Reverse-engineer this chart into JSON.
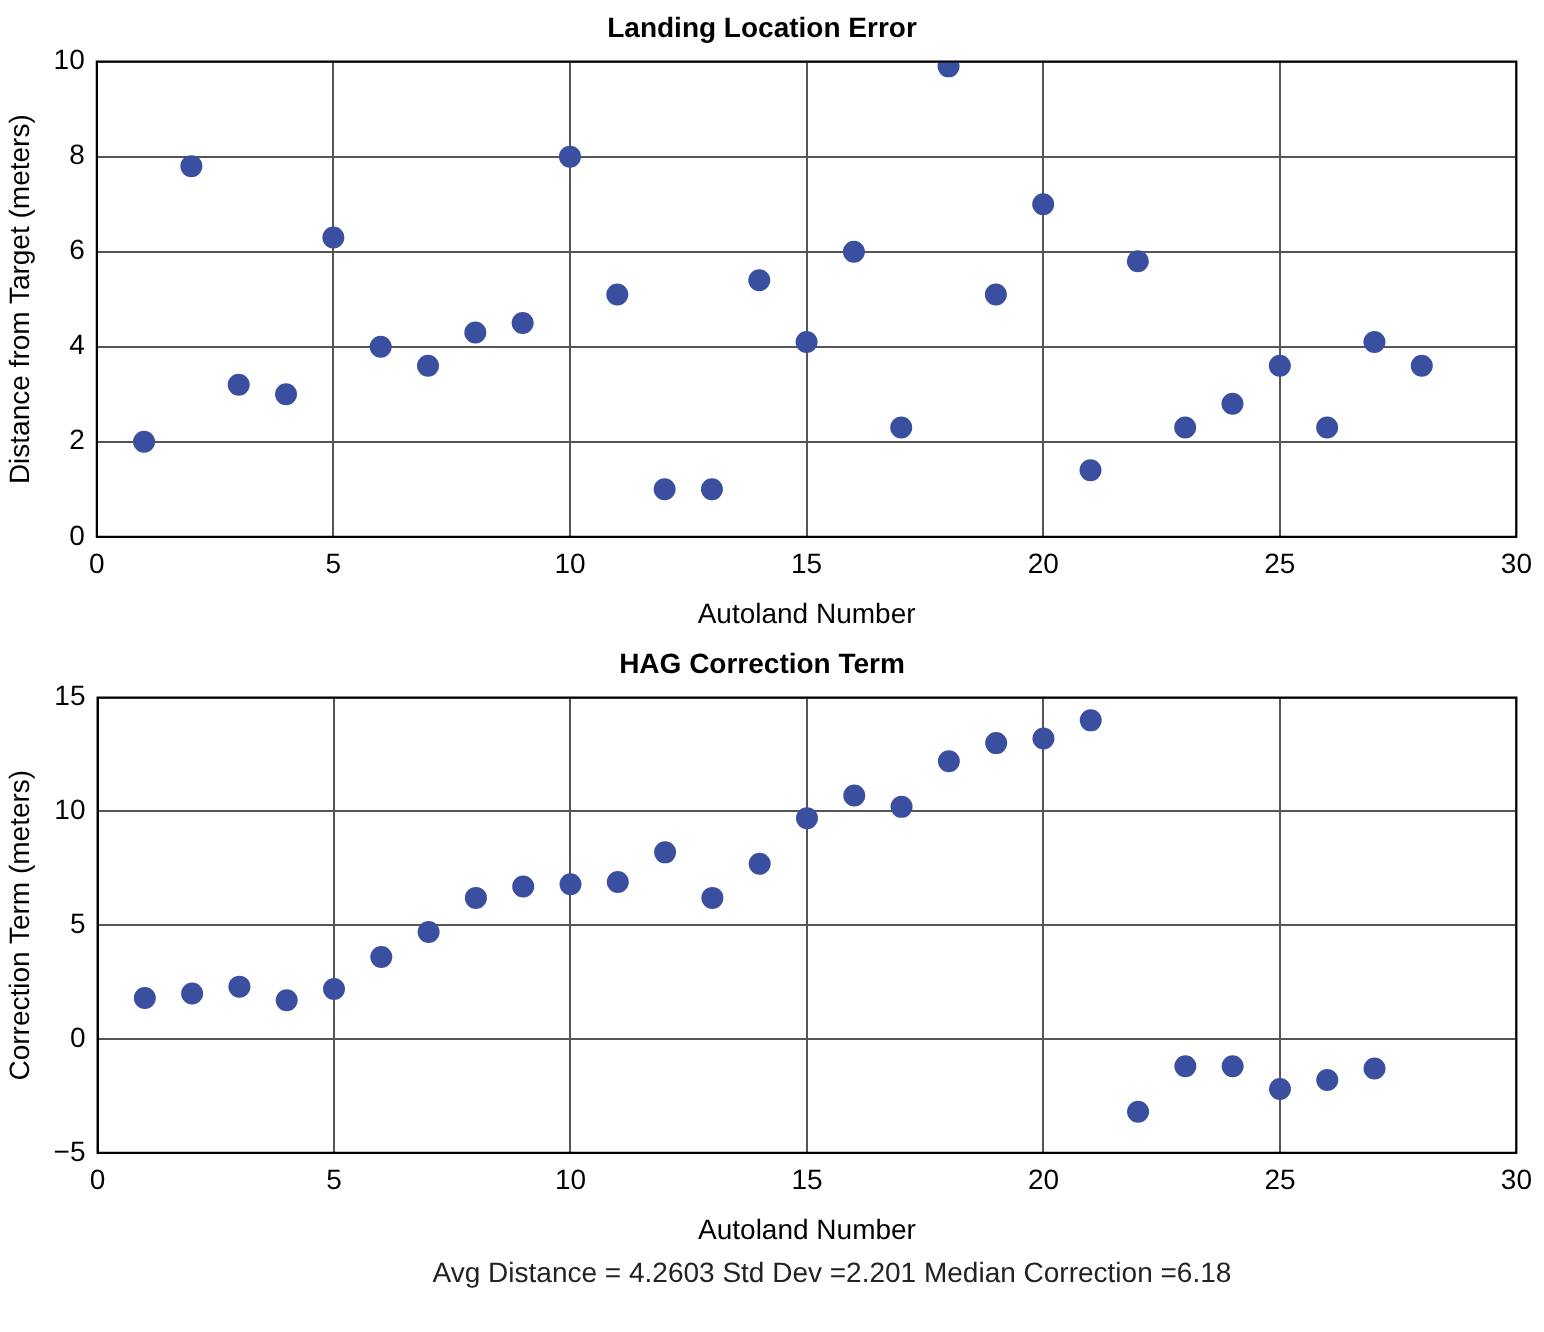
{
  "chart_data": [
    {
      "type": "scatter",
      "title": "Landing Location Error",
      "xlabel": "Autoland Number",
      "ylabel": "Distance from Target (meters)",
      "x": [
        1,
        2,
        3,
        4,
        5,
        6,
        7,
        8,
        9,
        10,
        11,
        12,
        13,
        14,
        15,
        16,
        17,
        18,
        19,
        20,
        21,
        22,
        23,
        24,
        25,
        26,
        27,
        28
      ],
      "series": [
        {
          "color": "#3b4fa0",
          "values": [
            2.0,
            7.8,
            3.2,
            3.0,
            6.3,
            4.0,
            3.6,
            4.3,
            4.5,
            8.0,
            5.1,
            1.0,
            1.0,
            5.4,
            4.1,
            6.0,
            2.3,
            9.9,
            5.1,
            7.0,
            1.4,
            5.8,
            2.3,
            2.8,
            3.6,
            2.3,
            4.1,
            3.6
          ]
        }
      ],
      "xlim": [
        0,
        30
      ],
      "xticks": [
        0,
        5,
        10,
        15,
        20,
        25,
        30
      ],
      "ylim": [
        0,
        10
      ],
      "yticks": [
        0,
        2,
        4,
        6,
        8,
        10
      ],
      "grid": true,
      "marker": "circle",
      "legend": false
    },
    {
      "type": "scatter",
      "title": "HAG Correction Term",
      "xlabel": "Autoland Number",
      "ylabel": "Correction Term (meters)",
      "x": [
        1,
        2,
        3,
        4,
        5,
        6,
        7,
        8,
        9,
        10,
        11,
        12,
        13,
        14,
        15,
        16,
        17,
        18,
        19,
        20,
        21,
        22,
        23,
        24,
        25,
        26,
        27
      ],
      "series": [
        {
          "color": "#3b4fa0",
          "values": [
            1.8,
            2.0,
            2.3,
            1.7,
            2.2,
            3.6,
            4.7,
            6.2,
            6.7,
            6.8,
            6.9,
            8.2,
            6.2,
            7.7,
            9.7,
            10.7,
            10.2,
            12.2,
            13.0,
            13.2,
            14.0,
            -3.2,
            -1.2,
            -1.2,
            -2.2,
            -1.8,
            -1.3
          ]
        }
      ],
      "xlim": [
        0,
        30
      ],
      "xticks": [
        0,
        5,
        10,
        15,
        20,
        25,
        30
      ],
      "ylim": [
        -5,
        15
      ],
      "yticks": [
        -5,
        0,
        5,
        10,
        15
      ],
      "grid": true,
      "marker": "circle",
      "legend": false,
      "annotations": [
        "Avg Distance = 4.2603 Std Dev =2.201 Median Correction =6.18"
      ]
    }
  ]
}
